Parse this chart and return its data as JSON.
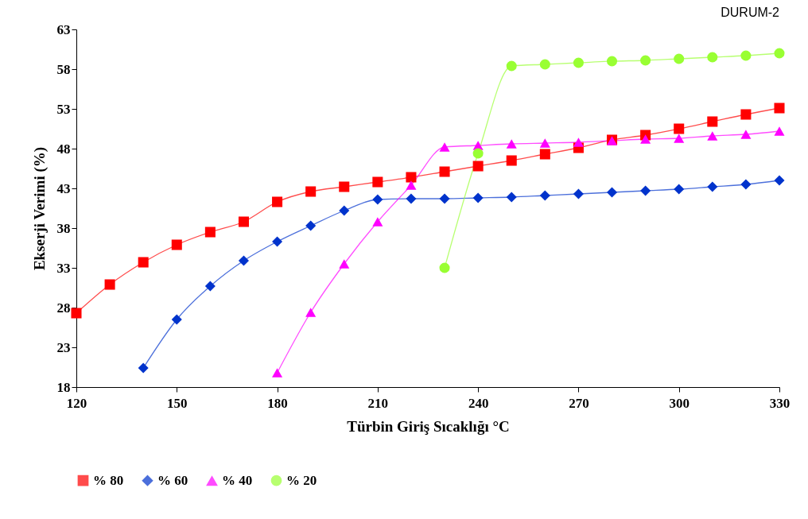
{
  "chart_data": {
    "type": "line",
    "xlabel": "Türbin Giriş Sıcaklığı °C",
    "ylabel": "Ekserji Verimi (%)",
    "annotations": [
      "DURUM-2"
    ],
    "xlim": [
      120,
      330
    ],
    "xticks": [
      120,
      150,
      180,
      210,
      240,
      270,
      300,
      330
    ],
    "ylim": [
      18,
      63
    ],
    "yticks": [
      18,
      23,
      28,
      33,
      38,
      43,
      48,
      53,
      58,
      63
    ],
    "grid": false,
    "legend": "bottom",
    "series": [
      {
        "name": "% 80",
        "color": "#ff0000",
        "marker": "square",
        "x": [
          120,
          130,
          140,
          150,
          160,
          170,
          180,
          190,
          200,
          210,
          220,
          230,
          240,
          250,
          260,
          270,
          280,
          290,
          300,
          310,
          320,
          330
        ],
        "values": [
          27.3,
          30.9,
          33.7,
          35.9,
          37.5,
          38.8,
          41.3,
          42.6,
          43.2,
          43.8,
          44.4,
          45.1,
          45.8,
          46.5,
          47.3,
          48.1,
          49.1,
          49.7,
          50.5,
          51.4,
          52.3,
          53.1
        ]
      },
      {
        "name": "% 60",
        "color": "#0033cc",
        "marker": "diamond",
        "x": [
          140,
          150,
          160,
          170,
          180,
          190,
          200,
          210,
          220,
          230,
          240,
          250,
          260,
          270,
          280,
          290,
          300,
          310,
          320,
          330
        ],
        "values": [
          20.4,
          26.5,
          30.7,
          33.9,
          36.3,
          38.3,
          40.2,
          41.6,
          41.7,
          41.7,
          41.8,
          41.9,
          42.1,
          42.3,
          42.5,
          42.7,
          42.9,
          43.2,
          43.5,
          44.0
        ]
      },
      {
        "name": "% 40",
        "color": "#ff00ff",
        "marker": "triangle",
        "x": [
          180,
          190,
          200,
          210,
          220,
          230,
          240,
          250,
          260,
          270,
          280,
          290,
          300,
          310,
          320,
          330
        ],
        "values": [
          19.8,
          27.4,
          33.5,
          38.8,
          43.4,
          48.2,
          48.4,
          48.6,
          48.7,
          48.8,
          49.0,
          49.2,
          49.3,
          49.6,
          49.8,
          50.2
        ]
      },
      {
        "name": "% 20",
        "color": "#99ff33",
        "marker": "circle",
        "x": [
          230,
          240,
          250,
          260,
          270,
          280,
          290,
          300,
          310,
          320,
          330
        ],
        "values": [
          33.0,
          47.4,
          58.4,
          58.6,
          58.8,
          59.0,
          59.1,
          59.3,
          59.5,
          59.7,
          60.0
        ]
      }
    ]
  }
}
